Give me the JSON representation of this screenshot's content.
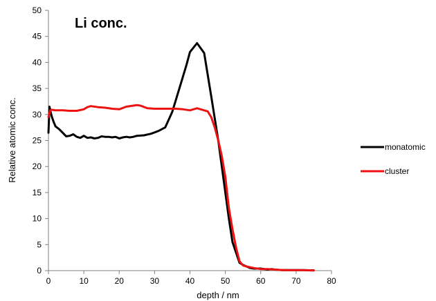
{
  "chart_data": {
    "type": "line",
    "title": "Li conc.",
    "xlabel": "depth / nm",
    "ylabel": "Relative atomic conc.",
    "xlim": [
      0,
      80
    ],
    "ylim": [
      0,
      50
    ],
    "x_ticks": [
      0,
      10,
      20,
      30,
      40,
      50,
      60,
      70,
      80
    ],
    "y_ticks": [
      0,
      5,
      10,
      15,
      20,
      25,
      30,
      35,
      40,
      45,
      50
    ],
    "grid": false,
    "legend_position": "right",
    "series": [
      {
        "name": "monatomic",
        "color": "#000000",
        "x": [
          0,
          0.3,
          0.6,
          1,
          1.5,
          2,
          3,
          4,
          5,
          6,
          7,
          8,
          9,
          10,
          11,
          12,
          13,
          14,
          15,
          16,
          17,
          18,
          19,
          20,
          21,
          22,
          23,
          24,
          25,
          27,
          29,
          31,
          33,
          35,
          37,
          39,
          40,
          42,
          44,
          46,
          48,
          49,
          50,
          51,
          52,
          53,
          54,
          55,
          56,
          57,
          58,
          60,
          62,
          63,
          64,
          66,
          68,
          70,
          72,
          74,
          75
        ],
        "y": [
          26.5,
          31.5,
          30.5,
          29.5,
          28.5,
          27.7,
          27.2,
          26.5,
          25.8,
          25.9,
          26.2,
          25.7,
          25.5,
          25.9,
          25.5,
          25.6,
          25.4,
          25.5,
          25.8,
          25.7,
          25.7,
          25.6,
          25.7,
          25.4,
          25.6,
          25.7,
          25.6,
          25.7,
          25.9,
          26.0,
          26.3,
          26.8,
          27.5,
          30.5,
          35.0,
          39.5,
          42.0,
          43.7,
          41.8,
          33.5,
          25.0,
          20.0,
          15.0,
          10.0,
          5.5,
          3.5,
          1.5,
          1.1,
          0.8,
          0.5,
          0.4,
          0.4,
          0.2,
          0.3,
          0.2,
          0.1,
          0.1,
          0.1,
          0.1,
          0.05,
          0.05
        ]
      },
      {
        "name": "cluster",
        "color": "#ee1111",
        "x": [
          0,
          0.5,
          1,
          2,
          4,
          6,
          8,
          10,
          11,
          12,
          14,
          16,
          18,
          20,
          22,
          24,
          25,
          26,
          28,
          30,
          32,
          34,
          36,
          38,
          40,
          42,
          43,
          45,
          46,
          47,
          48,
          49,
          50,
          51,
          52,
          53,
          54,
          55,
          56,
          58,
          60,
          62,
          64,
          66,
          68,
          70,
          72,
          75
        ],
        "y": [
          29.5,
          30.8,
          30.9,
          30.8,
          30.8,
          30.7,
          30.7,
          31.0,
          31.4,
          31.6,
          31.4,
          31.3,
          31.1,
          31.0,
          31.5,
          31.7,
          31.8,
          31.7,
          31.2,
          31.1,
          31.1,
          31.1,
          31.1,
          31.0,
          30.8,
          31.2,
          31.0,
          30.6,
          29.5,
          27.5,
          25.0,
          22.0,
          18.0,
          12.0,
          8.0,
          4.5,
          1.8,
          1.0,
          0.8,
          0.5,
          0.3,
          0.3,
          0.2,
          0.1,
          0.1,
          0.1,
          0.1,
          0.05
        ]
      }
    ]
  }
}
